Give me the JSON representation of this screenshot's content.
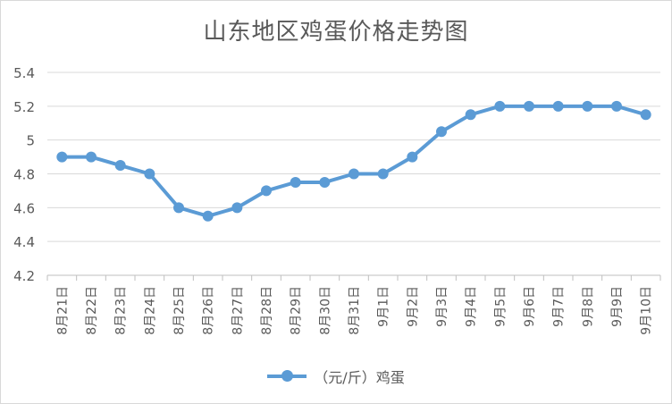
{
  "chart_data": {
    "type": "line",
    "title": "山东地区鸡蛋价格走势图",
    "categories": [
      "8月21日",
      "8月22日",
      "8月23日",
      "8月24日",
      "8月25日",
      "8月26日",
      "8月27日",
      "8月28日",
      "8月29日",
      "8月30日",
      "8月31日",
      "9月1日",
      "9月2日",
      "9月3日",
      "9月4日",
      "9月5日",
      "9月6日",
      "9月7日",
      "9月8日",
      "9月9日",
      "9月10日"
    ],
    "series": [
      {
        "name": "（元/斤）鸡蛋",
        "color": "#5b9bd5",
        "values": [
          4.9,
          4.9,
          4.85,
          4.8,
          4.6,
          4.55,
          4.6,
          4.7,
          4.75,
          4.75,
          4.8,
          4.8,
          4.9,
          5.05,
          5.15,
          5.2,
          5.2,
          5.2,
          5.2,
          5.2,
          5.15
        ]
      }
    ],
    "ylim": [
      4.2,
      5.4
    ],
    "yticks": [
      "4.2",
      "4.4",
      "4.6",
      "4.8",
      "5",
      "5.2",
      "5.4"
    ],
    "grid": true,
    "legend_position": "bottom"
  }
}
